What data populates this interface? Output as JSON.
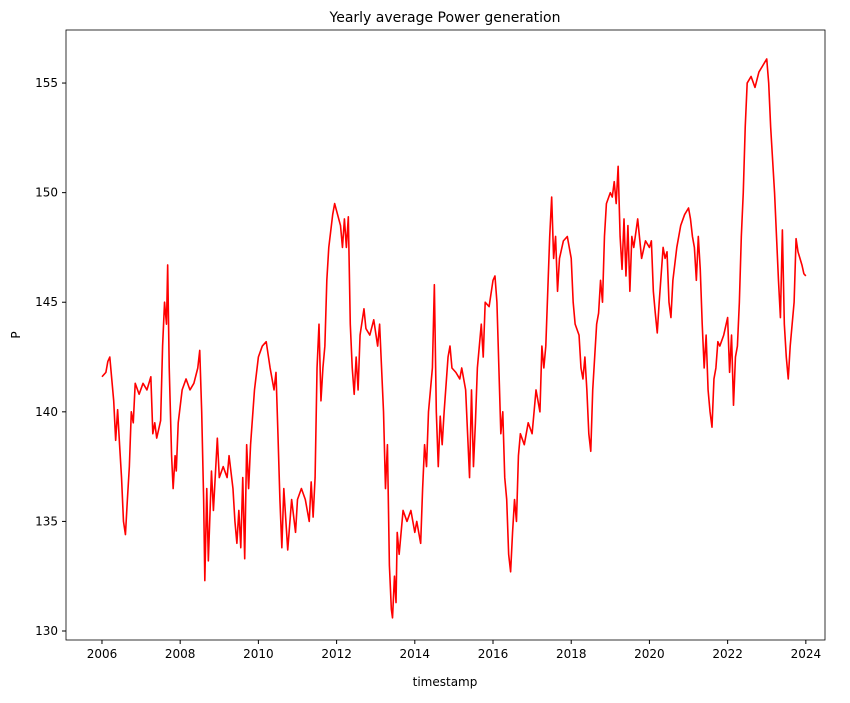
{
  "chart_data": {
    "type": "line",
    "title": "Yearly average Power generation",
    "xlabel": "timestamp",
    "ylabel": "P",
    "x": [
      2006.0,
      2006.1,
      2006.15,
      2006.2,
      2006.25,
      2006.3,
      2006.35,
      2006.4,
      2006.45,
      2006.5,
      2006.55,
      2006.6,
      2006.65,
      2006.7,
      2006.75,
      2006.8,
      2006.85,
      2006.95,
      2007.05,
      2007.15,
      2007.25,
      2007.3,
      2007.35,
      2007.4,
      2007.5,
      2007.55,
      2007.6,
      2007.65,
      2007.68,
      2007.72,
      2007.78,
      2007.82,
      2007.87,
      2007.9,
      2007.95,
      2008.05,
      2008.15,
      2008.25,
      2008.35,
      2008.45,
      2008.5,
      2008.55,
      2008.6,
      2008.63,
      2008.68,
      2008.72,
      2008.8,
      2008.85,
      2008.95,
      2009.0,
      2009.1,
      2009.2,
      2009.25,
      2009.35,
      2009.4,
      2009.45,
      2009.5,
      2009.55,
      2009.6,
      2009.65,
      2009.7,
      2009.75,
      2009.8,
      2009.9,
      2010.0,
      2010.1,
      2010.2,
      2010.3,
      2010.4,
      2010.45,
      2010.5,
      2010.55,
      2010.6,
      2010.65,
      2010.75,
      2010.85,
      2010.95,
      2011.0,
      2011.1,
      2011.2,
      2011.3,
      2011.35,
      2011.4,
      2011.45,
      2011.5,
      2011.55,
      2011.6,
      2011.65,
      2011.7,
      2011.75,
      2011.8,
      2011.9,
      2011.95,
      2012.1,
      2012.15,
      2012.2,
      2012.25,
      2012.3,
      2012.35,
      2012.4,
      2012.45,
      2012.5,
      2012.55,
      2012.6,
      2012.7,
      2012.75,
      2012.85,
      2012.95,
      2013.05,
      2013.1,
      2013.2,
      2013.25,
      2013.3,
      2013.35,
      2013.4,
      2013.43,
      2013.48,
      2013.52,
      2013.55,
      2013.6,
      2013.7,
      2013.8,
      2013.9,
      2014.0,
      2014.05,
      2014.15,
      2014.2,
      2014.25,
      2014.3,
      2014.35,
      2014.4,
      2014.45,
      2014.5,
      2014.55,
      2014.6,
      2014.65,
      2014.7,
      2014.75,
      2014.85,
      2014.9,
      2014.95,
      2015.05,
      2015.15,
      2015.2,
      2015.3,
      2015.35,
      2015.4,
      2015.45,
      2015.5,
      2015.55,
      2015.6,
      2015.7,
      2015.75,
      2015.8,
      2015.9,
      2016.0,
      2016.05,
      2016.1,
      2016.15,
      2016.2,
      2016.25,
      2016.3,
      2016.35,
      2016.4,
      2016.45,
      2016.5,
      2016.55,
      2016.6,
      2016.65,
      2016.7,
      2016.8,
      2016.9,
      2017.0,
      2017.05,
      2017.1,
      2017.2,
      2017.25,
      2017.3,
      2017.35,
      2017.45,
      2017.5,
      2017.55,
      2017.6,
      2017.65,
      2017.7,
      2017.8,
      2017.9,
      2018.0,
      2018.05,
      2018.1,
      2018.2,
      2018.25,
      2018.3,
      2018.35,
      2018.4,
      2018.45,
      2018.5,
      2018.55,
      2018.6,
      2018.65,
      2018.7,
      2018.75,
      2018.8,
      2018.85,
      2018.9,
      2019.0,
      2019.05,
      2019.1,
      2019.15,
      2019.2,
      2019.25,
      2019.3,
      2019.35,
      2019.4,
      2019.45,
      2019.5,
      2019.55,
      2019.6,
      2019.7,
      2019.8,
      2019.9,
      2020.0,
      2020.05,
      2020.1,
      2020.15,
      2020.2,
      2020.25,
      2020.35,
      2020.4,
      2020.45,
      2020.5,
      2020.55,
      2020.6,
      2020.7,
      2020.8,
      2020.9,
      2021.0,
      2021.05,
      2021.1,
      2021.15,
      2021.2,
      2021.25,
      2021.3,
      2021.35,
      2021.4,
      2021.45,
      2021.5,
      2021.55,
      2021.6,
      2021.65,
      2021.7,
      2021.75,
      2021.8,
      2021.9,
      2022.0,
      2022.05,
      2022.1,
      2022.15,
      2022.2,
      2022.25,
      2022.3,
      2022.35,
      2022.4,
      2022.45,
      2022.5,
      2022.6,
      2022.7,
      2022.8,
      2022.9,
      2023.0,
      2023.05,
      2023.1,
      2023.15,
      2023.2,
      2023.25,
      2023.3,
      2023.35,
      2023.4,
      2023.45,
      2023.5,
      2023.55,
      2023.6,
      2023.7,
      2023.75,
      2023.8,
      2023.85,
      2023.9,
      2023.95,
      2024.0
    ],
    "series": [
      {
        "color": "#ff0000",
        "values": [
          141.6,
          141.8,
          142.3,
          142.5,
          141.5,
          140.5,
          138.7,
          140.1,
          138.5,
          137.0,
          135.0,
          134.4,
          136.0,
          137.5,
          140.0,
          139.5,
          141.3,
          140.8,
          141.3,
          141.0,
          141.6,
          139.0,
          139.5,
          138.8,
          139.6,
          143.0,
          145.0,
          144.0,
          146.7,
          142.0,
          138.0,
          136.5,
          138.0,
          137.3,
          139.5,
          141.0,
          141.5,
          141.0,
          141.3,
          142.0,
          142.8,
          140.0,
          136.0,
          132.3,
          136.5,
          133.2,
          137.3,
          135.5,
          138.8,
          137.0,
          137.5,
          137.0,
          138.0,
          136.5,
          135.0,
          134.0,
          135.5,
          133.8,
          137.0,
          133.3,
          138.5,
          136.5,
          138.5,
          141.0,
          142.5,
          143.0,
          143.2,
          142.0,
          141.0,
          141.8,
          139.0,
          136.0,
          133.8,
          136.5,
          133.7,
          136.0,
          134.5,
          136.0,
          136.5,
          136.0,
          135.0,
          136.8,
          135.2,
          137.0,
          142.0,
          144.0,
          140.5,
          142.0,
          143.0,
          146.0,
          147.5,
          149.0,
          149.5,
          148.5,
          147.5,
          148.8,
          147.5,
          148.9,
          144.0,
          142.0,
          140.8,
          142.5,
          141.0,
          143.5,
          144.7,
          143.8,
          143.5,
          144.2,
          143.0,
          144.0,
          140.0,
          136.5,
          138.5,
          133.0,
          131.0,
          130.6,
          132.5,
          131.3,
          134.5,
          133.5,
          135.5,
          135.0,
          135.5,
          134.5,
          135.0,
          134.0,
          136.5,
          138.5,
          137.5,
          140.0,
          141.0,
          142.0,
          145.8,
          140.0,
          137.5,
          139.8,
          138.5,
          140.0,
          142.5,
          143.0,
          142.0,
          141.8,
          141.5,
          142.0,
          141.0,
          139.0,
          137.0,
          141.0,
          137.5,
          139.5,
          142.0,
          144.0,
          142.5,
          145.0,
          144.8,
          146.0,
          146.2,
          145.0,
          142.0,
          139.0,
          140.0,
          137.0,
          136.0,
          133.5,
          132.7,
          134.5,
          136.0,
          135.0,
          138.0,
          139.0,
          138.5,
          139.5,
          139.0,
          140.0,
          141.0,
          140.0,
          143.0,
          142.0,
          143.0,
          148.0,
          149.8,
          147.0,
          148.0,
          145.5,
          147.0,
          147.8,
          148.0,
          147.0,
          145.0,
          144.0,
          143.5,
          142.0,
          141.5,
          142.5,
          141.0,
          139.0,
          138.2,
          141.0,
          142.5,
          144.0,
          144.5,
          146.0,
          145.0,
          148.0,
          149.5,
          150.0,
          149.8,
          150.5,
          149.5,
          151.2,
          148.0,
          146.5,
          148.8,
          146.2,
          148.5,
          145.5,
          148.0,
          147.5,
          148.8,
          147.0,
          147.8,
          147.5,
          147.8,
          145.5,
          144.5,
          143.6,
          145.0,
          147.5,
          147.0,
          147.3,
          145.0,
          144.3,
          146.0,
          147.5,
          148.5,
          149.0,
          149.3,
          148.8,
          148.0,
          147.5,
          146.0,
          148.0,
          146.5,
          144.0,
          142.0,
          143.5,
          141.0,
          140.0,
          139.3,
          141.5,
          142.0,
          143.2,
          143.0,
          143.5,
          144.3,
          141.8,
          143.5,
          140.3,
          142.5,
          143.0,
          145.0,
          148.0,
          150.0,
          153.0,
          155.0,
          155.3,
          154.8,
          155.5,
          155.8,
          156.1,
          155.0,
          153.0,
          151.5,
          150.0,
          148.0,
          146.0,
          144.3,
          148.3,
          144.0,
          142.5,
          141.5,
          143.0,
          145.0,
          147.9,
          147.3,
          147.0,
          146.7,
          146.3,
          146.2
        ]
      }
    ],
    "xlim": [
      2005.08,
      2024.49
    ],
    "ylim": [
      129.59,
      157.42
    ],
    "xticks": [
      2006,
      2008,
      2010,
      2012,
      2014,
      2016,
      2018,
      2020,
      2022,
      2024
    ],
    "yticks": [
      130,
      135,
      140,
      145,
      150,
      155
    ]
  }
}
